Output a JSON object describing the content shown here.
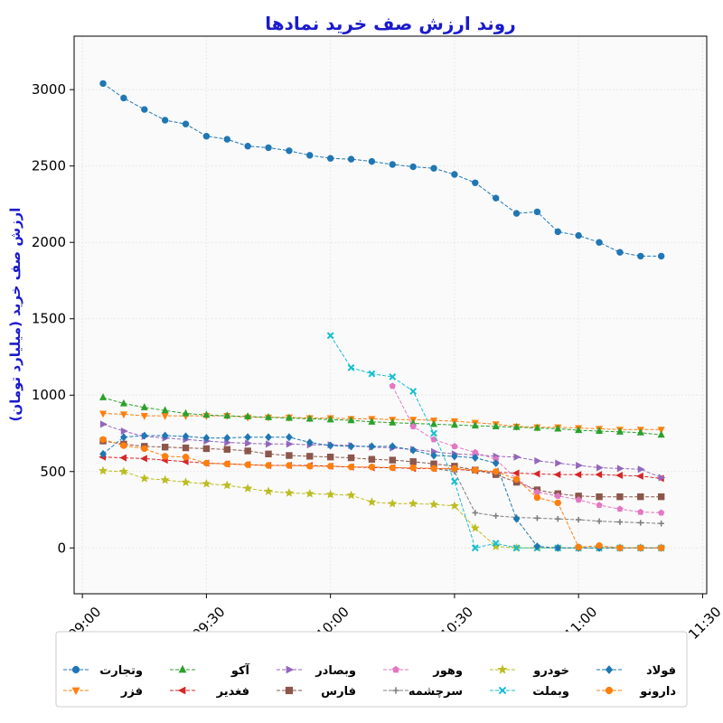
{
  "chart_data": {
    "type": "line",
    "title": "روند ارزش صف خرید نمادها",
    "ylabel": "ارزش صف خرید (میلیارد تومان)",
    "xlabel": "",
    "x_ticks": [
      "09:00",
      "09:30",
      "10:00",
      "10:30",
      "11:00",
      "11:30"
    ],
    "y_ticks": [
      "0",
      "500",
      "1000",
      "1500",
      "2000",
      "2500",
      "3000"
    ],
    "xlim": [
      "08:58",
      "11:31"
    ],
    "ylim": [
      -300,
      3350
    ],
    "grid": true,
    "legend_placement": "bottom",
    "series": [
      {
        "name": "وتجارت",
        "color": "#1f77b4",
        "marker": "circle",
        "x": [
          "09:05",
          "09:10",
          "09:15",
          "09:20",
          "09:25",
          "09:30",
          "09:35",
          "09:40",
          "09:45",
          "09:50",
          "09:55",
          "10:00",
          "10:05",
          "10:10",
          "10:15",
          "10:20",
          "10:25",
          "10:30",
          "10:35",
          "10:40",
          "10:45",
          "10:50",
          "10:55",
          "11:00",
          "11:05",
          "11:10",
          "11:15",
          "11:20"
        ],
        "values": [
          3040,
          2945,
          2870,
          2800,
          2775,
          2695,
          2675,
          2630,
          2620,
          2600,
          2570,
          2550,
          2545,
          2530,
          2510,
          2495,
          2485,
          2445,
          2390,
          2290,
          2190,
          2200,
          2070,
          2045,
          2000,
          1935,
          1910,
          1910
        ]
      },
      {
        "name": "فزر",
        "color": "#ff7f0e",
        "marker": "triangle-down",
        "x": [
          "09:05",
          "09:10",
          "09:15",
          "09:20",
          "09:25",
          "09:30",
          "09:35",
          "09:40",
          "09:45",
          "09:50",
          "09:55",
          "10:00",
          "10:05",
          "10:10",
          "10:15",
          "10:20",
          "10:25",
          "10:30",
          "10:35",
          "10:40",
          "10:45",
          "10:50",
          "10:55",
          "11:00",
          "11:05",
          "11:10",
          "11:15",
          "11:20"
        ],
        "values": [
          880,
          875,
          865,
          865,
          865,
          865,
          865,
          855,
          855,
          855,
          850,
          850,
          845,
          845,
          840,
          840,
          835,
          830,
          820,
          810,
          795,
          790,
          790,
          785,
          780,
          775,
          775,
          775
        ]
      },
      {
        "name": "آکو",
        "color": "#2ca02c",
        "marker": "triangle-up",
        "x": [
          "09:05",
          "09:10",
          "09:15",
          "09:20",
          "09:25",
          "09:30",
          "09:35",
          "09:40",
          "09:45",
          "09:50",
          "09:55",
          "10:00",
          "10:05",
          "10:10",
          "10:15",
          "10:20",
          "10:25",
          "10:30",
          "10:35",
          "10:40",
          "10:45",
          "10:50",
          "10:55",
          "11:00",
          "11:05",
          "11:10",
          "11:15",
          "11:20"
        ],
        "values": [
          985,
          945,
          920,
          900,
          880,
          870,
          865,
          860,
          855,
          850,
          845,
          840,
          835,
          825,
          820,
          815,
          810,
          805,
          800,
          795,
          790,
          785,
          780,
          770,
          765,
          760,
          755,
          740
        ]
      },
      {
        "name": "فغدیر",
        "color": "#d62728",
        "marker": "triangle-left",
        "x": [
          "09:05",
          "09:10",
          "09:15",
          "09:20",
          "09:25",
          "09:30",
          "09:35",
          "09:40",
          "09:45",
          "09:50",
          "09:55",
          "10:00",
          "10:05",
          "10:10",
          "10:15",
          "10:20",
          "10:25",
          "10:30",
          "10:35",
          "10:40",
          "10:45",
          "10:50",
          "10:55",
          "11:00",
          "11:05",
          "11:10",
          "11:15",
          "11:20"
        ],
        "values": [
          595,
          590,
          585,
          575,
          565,
          555,
          550,
          545,
          540,
          540,
          540,
          535,
          530,
          525,
          525,
          520,
          520,
          515,
          505,
          495,
          490,
          485,
          480,
          480,
          480,
          475,
          470,
          455
        ]
      },
      {
        "name": "وبصادر",
        "color": "#9467bd",
        "marker": "triangle-right",
        "x": [
          "09:05",
          "09:10",
          "09:15",
          "09:20",
          "09:25",
          "09:30",
          "09:35",
          "09:40",
          "09:45",
          "09:50",
          "09:55",
          "10:00",
          "10:05",
          "10:10",
          "10:15",
          "10:20",
          "10:25",
          "10:30",
          "10:35",
          "10:40",
          "10:45",
          "10:50",
          "10:55",
          "11:00",
          "11:05",
          "11:10",
          "11:15",
          "11:20"
        ],
        "values": [
          810,
          765,
          730,
          720,
          710,
          700,
          690,
          685,
          680,
          680,
          675,
          675,
          670,
          660,
          655,
          645,
          630,
          615,
          610,
          600,
          595,
          570,
          555,
          540,
          525,
          520,
          515,
          460
        ]
      },
      {
        "name": "فارس",
        "color": "#8c564b",
        "marker": "square",
        "x": [
          "09:05",
          "09:10",
          "09:15",
          "09:20",
          "09:25",
          "09:30",
          "09:35",
          "09:40",
          "09:45",
          "09:50",
          "09:55",
          "10:00",
          "10:05",
          "10:10",
          "10:15",
          "10:20",
          "10:25",
          "10:30",
          "10:35",
          "10:40",
          "10:45",
          "10:50",
          "10:55",
          "11:00",
          "11:05",
          "11:10",
          "11:15",
          "11:20"
        ],
        "values": [
          700,
          680,
          665,
          660,
          655,
          650,
          645,
          635,
          615,
          605,
          600,
          595,
          590,
          580,
          575,
          565,
          550,
          535,
          510,
          480,
          430,
          380,
          355,
          340,
          335,
          335,
          335,
          335
        ]
      },
      {
        "name": "وهور",
        "color": "#e377c2",
        "marker": "pentagon",
        "x": [
          "10:15",
          "10:20",
          "10:25",
          "10:30",
          "10:35",
          "10:40",
          "10:45",
          "10:50",
          "10:55",
          "11:00",
          "11:05",
          "11:10",
          "11:15",
          "11:20"
        ],
        "values": [
          1060,
          795,
          710,
          665,
          625,
          580,
          450,
          365,
          340,
          315,
          280,
          255,
          235,
          230
        ]
      },
      {
        "name": "سرچشمه",
        "color": "#7f7f7f",
        "marker": "plus",
        "x": [
          "10:25",
          "10:30",
          "10:35",
          "10:40",
          "10:45",
          "10:50",
          "10:55",
          "11:00",
          "11:05",
          "11:10",
          "11:15",
          "11:20"
        ],
        "values": [
          520,
          500,
          230,
          210,
          200,
          195,
          190,
          185,
          175,
          170,
          165,
          160
        ]
      },
      {
        "name": "خودرو",
        "color": "#bcbd22",
        "marker": "star",
        "x": [
          "09:05",
          "09:10",
          "09:15",
          "09:20",
          "09:25",
          "09:30",
          "09:35",
          "09:40",
          "09:45",
          "09:50",
          "09:55",
          "10:00",
          "10:05",
          "10:10",
          "10:15",
          "10:20",
          "10:25",
          "10:30",
          "10:35",
          "10:40",
          "10:45",
          "10:50",
          "10:55",
          "11:00",
          "11:05",
          "11:10",
          "11:15",
          "11:20"
        ],
        "values": [
          505,
          500,
          455,
          445,
          430,
          420,
          410,
          390,
          370,
          360,
          355,
          350,
          345,
          300,
          290,
          290,
          285,
          275,
          130,
          10,
          0,
          0,
          0,
          0,
          0,
          0,
          0,
          0
        ]
      },
      {
        "name": "وبملت",
        "color": "#17becf",
        "marker": "x",
        "x": [
          "10:00",
          "10:05",
          "10:10",
          "10:15",
          "10:20",
          "10:25",
          "10:30",
          "10:35",
          "10:40",
          "10:45",
          "10:50",
          "10:55",
          "11:00",
          "11:05",
          "11:10",
          "11:15",
          "11:20"
        ],
        "values": [
          1390,
          1180,
          1140,
          1120,
          1025,
          750,
          435,
          0,
          30,
          0,
          0,
          0,
          0,
          0,
          0,
          0,
          0
        ]
      },
      {
        "name": "فولاد",
        "color": "#1f77b4",
        "marker": "diamond",
        "x": [
          "09:05",
          "09:10",
          "09:15",
          "09:20",
          "09:25",
          "09:30",
          "09:35",
          "09:40",
          "09:45",
          "09:50",
          "09:55",
          "10:00",
          "10:05",
          "10:10",
          "10:15",
          "10:20",
          "10:25",
          "10:30",
          "10:35",
          "10:40",
          "10:45",
          "10:50",
          "10:55",
          "11:00",
          "11:05",
          "11:10",
          "11:15",
          "11:20"
        ],
        "values": [
          615,
          725,
          735,
          735,
          730,
          720,
          720,
          725,
          725,
          725,
          690,
          670,
          665,
          665,
          665,
          640,
          605,
          600,
          590,
          555,
          190,
          10,
          0,
          0,
          0,
          0,
          0,
          0
        ]
      },
      {
        "name": "دارونو",
        "color": "#ff7f0e",
        "marker": "circle",
        "x": [
          "09:05",
          "09:10",
          "09:15",
          "09:20",
          "09:25",
          "09:30",
          "09:35",
          "09:40",
          "09:45",
          "09:50",
          "09:55",
          "10:00",
          "10:05",
          "10:10",
          "10:15",
          "10:20",
          "10:25",
          "10:30",
          "10:35",
          "10:40",
          "10:45",
          "10:50",
          "10:55",
          "11:00",
          "11:05",
          "11:10",
          "11:15",
          "11:20"
        ],
        "values": [
          710,
          670,
          650,
          600,
          595,
          555,
          550,
          545,
          540,
          540,
          535,
          535,
          530,
          530,
          525,
          525,
          520,
          520,
          510,
          500,
          450,
          330,
          295,
          5,
          15,
          0,
          0,
          0
        ]
      }
    ]
  }
}
